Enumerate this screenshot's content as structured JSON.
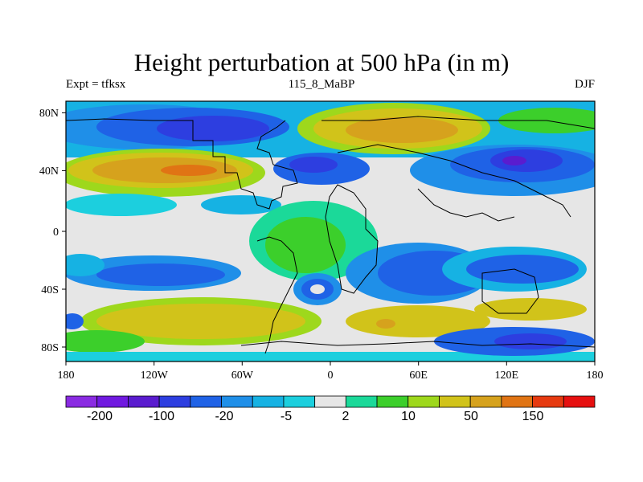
{
  "title": "Height perturbation at 500 hPa (in m)",
  "left_string": "Expt = tfksx",
  "center_string": "115_8_MaBP",
  "right_string": "DJF",
  "x_ticks": [
    "180",
    "120W",
    "60W",
    "0",
    "60E",
    "120E",
    "180"
  ],
  "y_ticks": [
    "80N",
    "40N",
    "0",
    "40S",
    "80S"
  ],
  "colorbar": {
    "colors": [
      "#8a2be2",
      "#7019e0",
      "#5a1ccf",
      "#2d3ee0",
      "#1f62e6",
      "#1f8fe8",
      "#16b2e3",
      "#1ccfde",
      "#e6e6e6",
      "#1bd999",
      "#3ccf2b",
      "#9ed81c",
      "#d1c31a",
      "#d6a21d",
      "#e07414",
      "#e63a10",
      "#e61010"
    ],
    "labels": [
      "-200",
      "-100",
      "-20",
      "-5",
      "2",
      "10",
      "50",
      "150"
    ]
  },
  "field_colors": {
    "neutral": "#e6e6e6",
    "cyan": "#16b2e3",
    "light_cyan": "#1ccfde",
    "mid_blue": "#1f8fe8",
    "blue": "#1f62e6",
    "deep_blue": "#2d3ee0",
    "indigo": "#5a1ccf",
    "green": "#3ccf2b",
    "teal": "#1bd999",
    "lime": "#9ed81c",
    "olive": "#d1c31a",
    "orange": "#d6a21d",
    "dark_orange": "#e07414"
  }
}
